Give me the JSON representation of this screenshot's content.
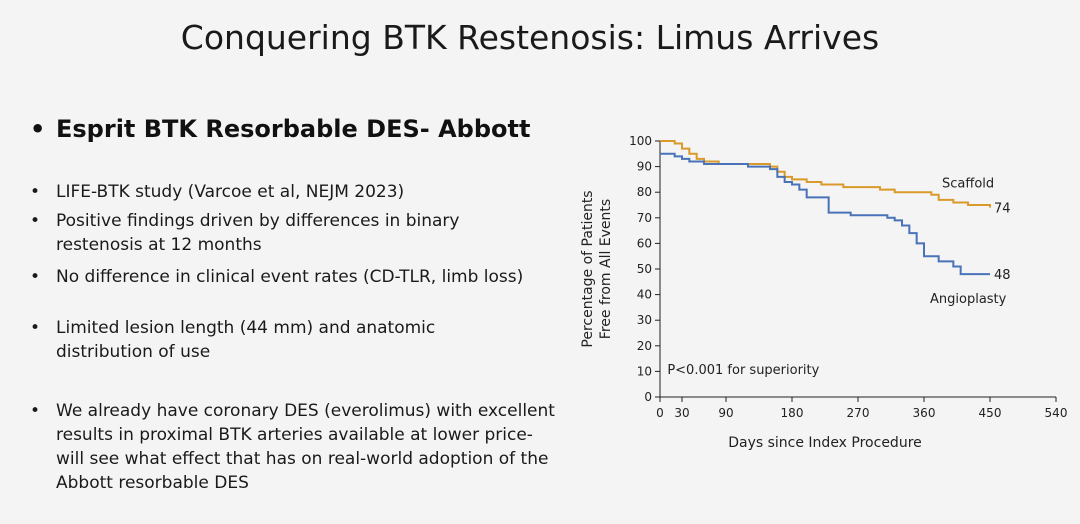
{
  "slide": {
    "title": "Conquering BTK Restenosis: Limus Arrives",
    "main_bullet": "Esprit BTK Resorbable DES- Abbott",
    "bullet_glyph": "•",
    "sub_bullets": [
      "LIFE-BTK study (Varcoe et al, NEJM 2023)",
      "Positive findings driven by differences in binary restenosis at 12 months",
      "No difference in clinical event rates (CD-TLR, limb loss)",
      "Limited lesion length (44 mm) and anatomic distribution of use",
      "We already have coronary DES (everolimus) with excellent results in proximal BTK arteries available at lower price- will see what effect that has on real-world adoption of the Abbott resorbable DES"
    ]
  },
  "chart_data": {
    "type": "line",
    "xlabel": "Days since Index Procedure",
    "ylabel_line1": "Percentage of Patients",
    "ylabel_line2": "Free from All Events",
    "xlim": [
      0,
      540
    ],
    "ylim": [
      0,
      100
    ],
    "x_ticks": [
      0,
      30,
      90,
      180,
      270,
      360,
      450,
      540
    ],
    "y_ticks": [
      0,
      10,
      20,
      30,
      40,
      50,
      60,
      70,
      80,
      90,
      100
    ],
    "annotation": "P<0.001 for superiority",
    "series": [
      {
        "name": "Scaffold",
        "end_label": "74",
        "color": "#d99a2b",
        "x": [
          0,
          20,
          30,
          40,
          50,
          60,
          80,
          100,
          150,
          160,
          170,
          180,
          200,
          220,
          250,
          280,
          300,
          320,
          360,
          370,
          380,
          400,
          420,
          450
        ],
        "y": [
          100,
          99,
          97,
          95,
          93,
          92,
          91,
          91,
          90,
          88,
          86,
          85,
          84,
          83,
          82,
          82,
          81,
          80,
          80,
          79,
          77,
          76,
          75,
          74
        ]
      },
      {
        "name": "Angioplasty",
        "end_label": "48",
        "color": "#4a72b8",
        "x": [
          0,
          20,
          30,
          40,
          60,
          90,
          120,
          150,
          160,
          170,
          180,
          190,
          200,
          230,
          260,
          290,
          300,
          310,
          320,
          330,
          340,
          350,
          360,
          380,
          400,
          410,
          450
        ],
        "y": [
          95,
          94,
          93,
          92,
          91,
          91,
          90,
          89,
          86,
          84,
          83,
          81,
          78,
          72,
          71,
          71,
          71,
          70,
          69,
          67,
          64,
          60,
          55,
          53,
          51,
          48,
          48
        ]
      }
    ]
  }
}
